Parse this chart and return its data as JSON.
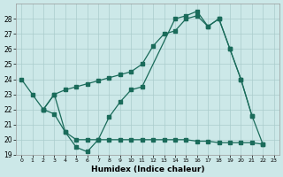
{
  "xlabel": "Humidex (Indice chaleur)",
  "background_color": "#cce8e8",
  "grid_color": "#aacccc",
  "line_color": "#1a6b5a",
  "xlim": [
    -0.5,
    23.5
  ],
  "ylim": [
    19,
    29
  ],
  "xticks": [
    0,
    1,
    2,
    3,
    4,
    5,
    6,
    7,
    8,
    9,
    10,
    11,
    12,
    13,
    14,
    15,
    16,
    17,
    18,
    19,
    20,
    21,
    22,
    23
  ],
  "yticks": [
    19,
    20,
    21,
    22,
    23,
    24,
    25,
    26,
    27,
    28
  ],
  "lineA_x": [
    0,
    1,
    2,
    3,
    4,
    5,
    6,
    7,
    8,
    9,
    10,
    11,
    14,
    15,
    16,
    17,
    18,
    19,
    20,
    21,
    22
  ],
  "lineA_y": [
    24,
    23,
    22,
    21.7,
    20.5,
    19.5,
    19.2,
    20,
    21.5,
    22.5,
    23.3,
    23.5,
    28,
    28.2,
    28.5,
    27.5,
    28,
    26,
    24,
    21.6,
    19.7
  ],
  "lineB_x": [
    2,
    3,
    4,
    5,
    6,
    7,
    8,
    9,
    10,
    11,
    12,
    13,
    14,
    15,
    16,
    17,
    18,
    19,
    20,
    21
  ],
  "lineB_y": [
    22,
    23,
    23.3,
    23.5,
    23.7,
    23.9,
    24.1,
    24.3,
    24.5,
    25,
    26.2,
    27,
    27.2,
    28,
    28.2,
    27.5,
    28,
    26,
    24,
    21.6
  ],
  "lineC_x": [
    2,
    3,
    4,
    5,
    6,
    7,
    8,
    9,
    10,
    11,
    12,
    13,
    14,
    15,
    16,
    17,
    18,
    19,
    20,
    21,
    22
  ],
  "lineC_y": [
    22,
    23,
    20.5,
    20,
    20,
    20,
    20,
    20,
    20,
    20,
    20,
    20,
    20,
    20,
    19.9,
    19.9,
    19.8,
    19.8,
    19.8,
    19.8,
    19.7
  ]
}
